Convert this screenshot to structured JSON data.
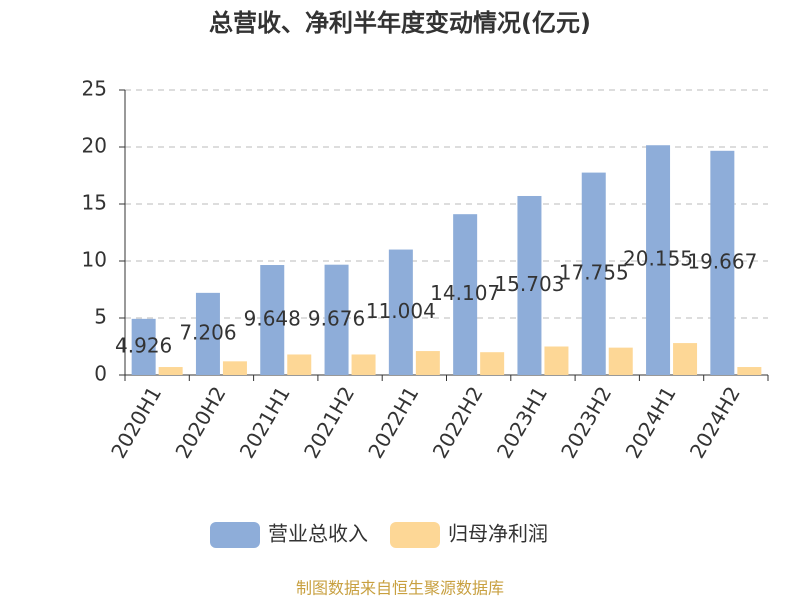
{
  "chart_data": {
    "type": "bar",
    "title": "总营收、净利半年度变动情况(亿元)",
    "categories": [
      "2020H1",
      "2020H2",
      "2021H1",
      "2021H2",
      "2022H1",
      "2022H2",
      "2023H1",
      "2023H2",
      "2024H1",
      "2024H2"
    ],
    "series": [
      {
        "name": "营业总收入",
        "color": "#8eadd9",
        "values": [
          4.926,
          7.206,
          9.648,
          9.676,
          11.004,
          14.107,
          15.703,
          17.755,
          20.155,
          19.667
        ],
        "show_labels": true
      },
      {
        "name": "归母净利润",
        "color": "#fdd796",
        "values": [
          0.7,
          1.2,
          1.8,
          1.8,
          2.1,
          2.0,
          2.5,
          2.4,
          2.8,
          0.7
        ]
      }
    ],
    "ylim": [
      0,
      25
    ],
    "yticks": [
      0,
      5,
      10,
      15,
      20,
      25
    ],
    "grid": true,
    "source": "制图数据来自恒生聚源数据库"
  }
}
